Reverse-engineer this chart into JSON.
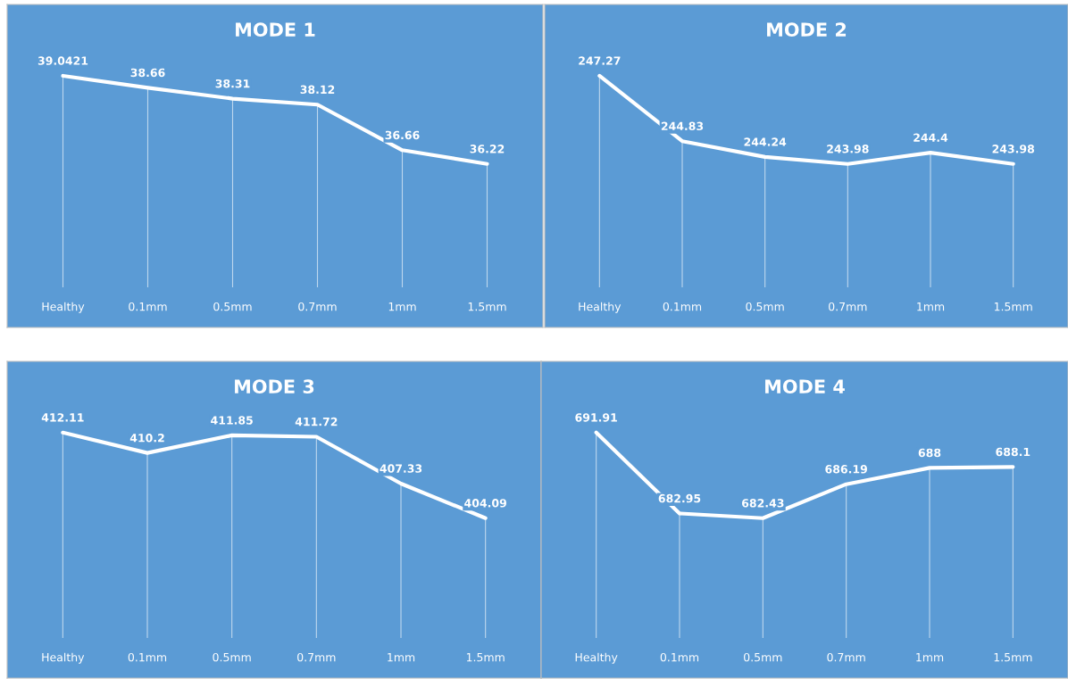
{
  "chart_data": [
    {
      "type": "line",
      "title": "MODE 1",
      "categories": [
        "Healthy",
        "0.1mm",
        "0.5mm",
        "0.7mm",
        "1mm",
        "1.5mm"
      ],
      "series": [
        {
          "color": "#ffffff",
          "values": [
            39.0421,
            38.66,
            38.31,
            38.12,
            36.66,
            36.22
          ]
        }
      ],
      "data_labels": true,
      "tick_labels": "x",
      "marker": "none",
      "line_style": "solid",
      "grid": "x"
    },
    {
      "type": "line",
      "title": "MODE 2",
      "categories": [
        "Healthy",
        "0.1mm",
        "0.5mm",
        "0.7mm",
        "1mm",
        "1.5mm"
      ],
      "series": [
        {
          "color": "#ffffff",
          "values": [
            247.27,
            244.83,
            244.24,
            243.98,
            244.4,
            243.98
          ]
        }
      ],
      "data_labels": true,
      "tick_labels": "x",
      "marker": "none",
      "line_style": "solid",
      "grid": "x"
    },
    {
      "type": "line",
      "title": "MODE 3",
      "categories": [
        "Healthy",
        "0.1mm",
        "0.5mm",
        "0.7mm",
        "1mm",
        "1.5mm"
      ],
      "series": [
        {
          "color": "#ffffff",
          "values": [
            412.11,
            410.2,
            411.85,
            411.72,
            407.33,
            404.09
          ]
        }
      ],
      "data_labels": true,
      "tick_labels": "x",
      "marker": "none",
      "line_style": "solid",
      "grid": "x"
    },
    {
      "type": "line",
      "title": "MODE 4",
      "categories": [
        "Healthy",
        "0.1mm",
        "0.5mm",
        "0.7mm",
        "1mm",
        "1.5mm"
      ],
      "series": [
        {
          "color": "#ffffff",
          "values": [
            691.91,
            682.95,
            682.43,
            686.19,
            688,
            688.1
          ]
        }
      ],
      "data_labels": true,
      "tick_labels": "x",
      "marker": "none",
      "line_style": "solid",
      "grid": "x"
    }
  ]
}
